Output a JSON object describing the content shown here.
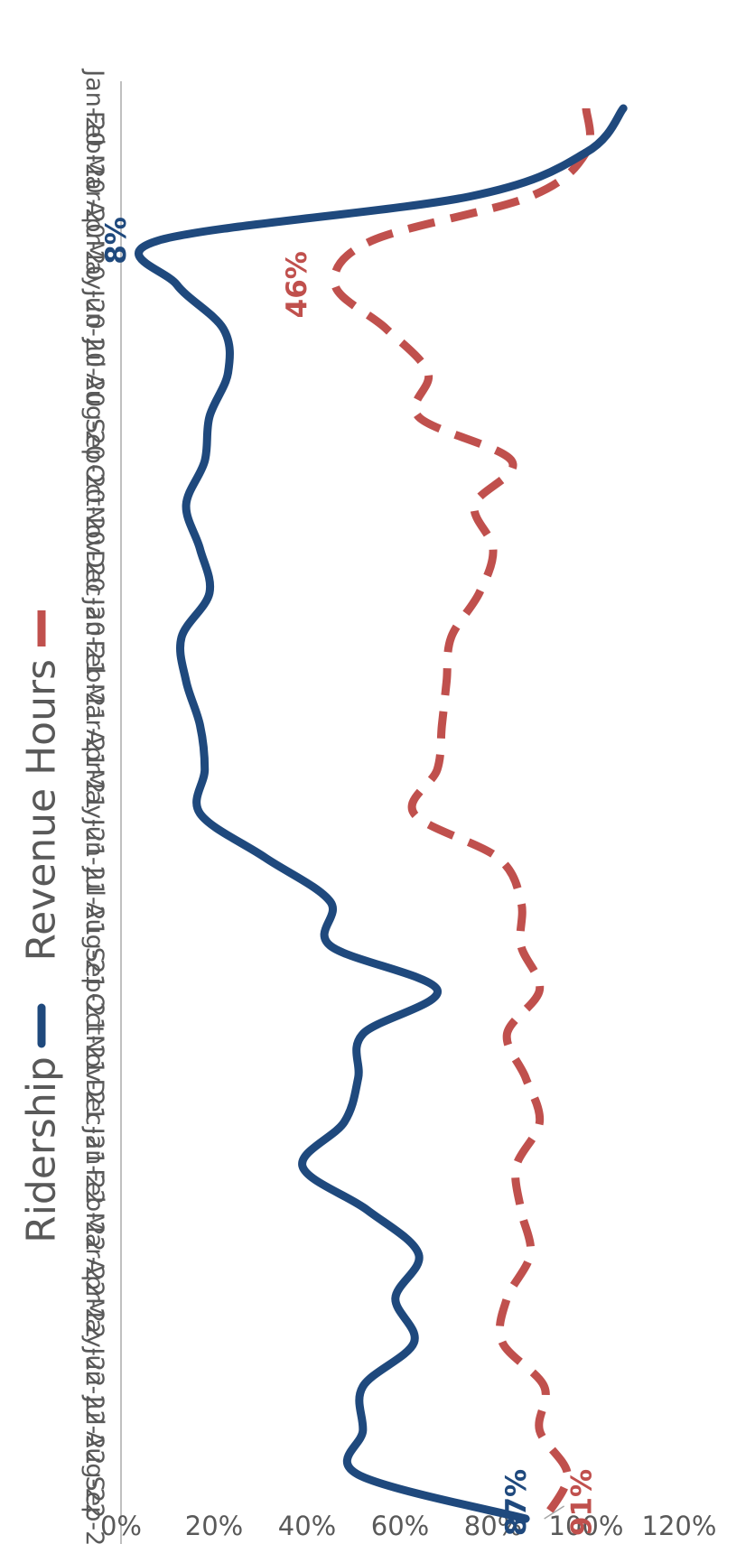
{
  "chart_data": {
    "type": "line",
    "categories": [
      "Jan-20",
      "Feb-20",
      "Mar-20",
      "Apr-20",
      "May-20",
      "Jun-20",
      "Jul-20",
      "Aug-20",
      "Sep-20",
      "Oct-20",
      "Nov-20",
      "Dec-20",
      "Jan-21",
      "Feb-21",
      "Mar-21",
      "Apr-21",
      "May-21",
      "Jun-21",
      "Jul-21",
      "Aug-21",
      "Sep-21",
      "Oct-21",
      "Nov-21",
      "Dec-21",
      "Jan-22",
      "Feb-22",
      "Mar-22",
      "Apr-22",
      "May-22",
      "Jun-22",
      "Jul-22",
      "Aug-22",
      "Sep-22"
    ],
    "series": [
      {
        "name": "Revenue Hours",
        "color": "#c0504d",
        "style": "dashed",
        "values": [
          100,
          100,
          88,
          54,
          46,
          57,
          66,
          64,
          84,
          76,
          80,
          77,
          71,
          70,
          69,
          68,
          63,
          81,
          86,
          86,
          90,
          83,
          87,
          90,
          85,
          86,
          88,
          83,
          82,
          91,
          90,
          96,
          91
        ]
      },
      {
        "name": "Ridership",
        "color": "#1f497d",
        "style": "solid",
        "values": [
          108,
          100,
          75,
          8,
          12,
          22,
          23,
          19,
          18,
          14,
          17,
          19,
          13,
          14,
          17,
          18,
          17,
          31,
          45,
          45,
          68,
          52,
          51,
          48,
          39,
          53,
          64,
          59,
          63,
          52,
          52,
          51,
          87
        ]
      }
    ],
    "yaxis": {
      "ticks": [
        "0%",
        "20%",
        "40%",
        "60%",
        "80%",
        "100%",
        "120%"
      ],
      "min": 0,
      "max": 120,
      "unit": "%"
    },
    "data_labels": [
      {
        "series": "Revenue Hours",
        "category": "May-20",
        "text": "46%"
      },
      {
        "series": "Revenue Hours",
        "category": "Sep-22",
        "text": "91%"
      },
      {
        "series": "Ridership",
        "category": "Apr-20",
        "text": "8%"
      },
      {
        "series": "Ridership",
        "category": "Sep-22",
        "text": "87%"
      }
    ],
    "legend": {
      "placement": "top",
      "items": [
        "Revenue Hours",
        "Ridership"
      ]
    },
    "grid": false,
    "orientation": "rotated-90"
  }
}
